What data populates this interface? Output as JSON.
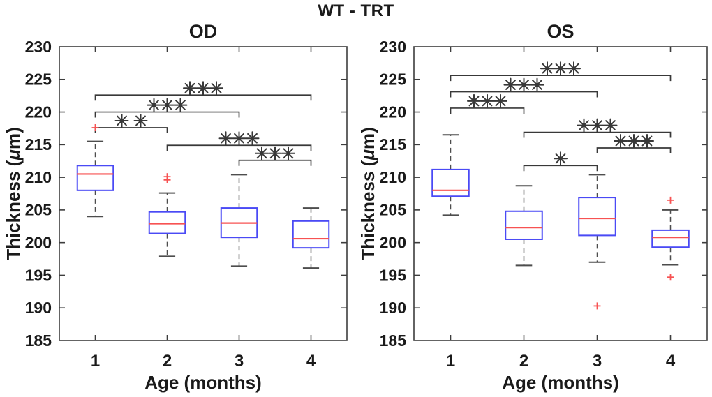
{
  "figure": {
    "title": "WT - TRT"
  },
  "chart_data": {
    "type": "boxplot",
    "title": "WT - TRT",
    "xlabel": "Age (months)",
    "ylabel": "Thickness (μm)",
    "ylim": [
      185,
      230
    ],
    "yticks": [
      230,
      225,
      220,
      215,
      210,
      205,
      200,
      195,
      190,
      185
    ],
    "categories": [
      "1",
      "2",
      "3",
      "4"
    ],
    "grid": false,
    "colors": {
      "box": "#4a4af5",
      "median": "#f75252",
      "outlier": "#f75252",
      "whisker": "#4d4d4d",
      "axis": "#3d3d3d",
      "sig": "#383838",
      "text": "#1a1a1a",
      "background": "#ffffff"
    },
    "subplots": [
      {
        "title": "OD",
        "boxes": [
          {
            "category": "1",
            "whislo": 204.0,
            "q1": 208.0,
            "med": 210.5,
            "q3": 211.8,
            "whishi": 215.5,
            "outliers": [
              217.6
            ]
          },
          {
            "category": "2",
            "whislo": 197.9,
            "q1": 201.4,
            "med": 202.9,
            "q3": 204.7,
            "whishi": 207.6,
            "outliers": [
              210.1,
              209.6
            ]
          },
          {
            "category": "3",
            "whislo": 196.4,
            "q1": 200.8,
            "med": 203.0,
            "q3": 205.3,
            "whishi": 210.4,
            "outliers": []
          },
          {
            "category": "4",
            "whislo": 196.1,
            "q1": 199.2,
            "med": 200.6,
            "q3": 203.3,
            "whishi": 205.3,
            "outliers": []
          }
        ],
        "significance": [
          {
            "groups": [
              1,
              2
            ],
            "y": 217.6,
            "label": "**"
          },
          {
            "groups": [
              1,
              3
            ],
            "y": 220.0,
            "label": "***"
          },
          {
            "groups": [
              1,
              4
            ],
            "y": 222.6,
            "label": "***"
          },
          {
            "groups": [
              2,
              4
            ],
            "y": 214.9,
            "label": "***"
          },
          {
            "groups": [
              3,
              4
            ],
            "y": 212.6,
            "label": "***"
          }
        ]
      },
      {
        "title": "OS",
        "boxes": [
          {
            "category": "1",
            "whislo": 204.2,
            "q1": 207.1,
            "med": 208.0,
            "q3": 211.2,
            "whishi": 216.5,
            "outliers": []
          },
          {
            "category": "2",
            "whislo": 196.5,
            "q1": 200.5,
            "med": 202.3,
            "q3": 204.8,
            "whishi": 208.7,
            "outliers": []
          },
          {
            "category": "3",
            "whislo": 197.0,
            "q1": 201.1,
            "med": 203.7,
            "q3": 206.9,
            "whishi": 210.4,
            "outliers": [
              190.3
            ]
          },
          {
            "category": "4",
            "whislo": 196.6,
            "q1": 199.3,
            "med": 200.8,
            "q3": 201.9,
            "whishi": 205.0,
            "outliers": [
              206.5,
              194.7
            ]
          }
        ],
        "significance": [
          {
            "groups": [
              1,
              2
            ],
            "y": 220.6,
            "label": "***"
          },
          {
            "groups": [
              1,
              3
            ],
            "y": 223.1,
            "label": "***"
          },
          {
            "groups": [
              1,
              4
            ],
            "y": 225.6,
            "label": "***"
          },
          {
            "groups": [
              2,
              3
            ],
            "y": 211.8,
            "label": "*"
          },
          {
            "groups": [
              2,
              4
            ],
            "y": 216.9,
            "label": "***"
          },
          {
            "groups": [
              3,
              4
            ],
            "y": 214.5,
            "label": "***"
          }
        ]
      }
    ]
  }
}
